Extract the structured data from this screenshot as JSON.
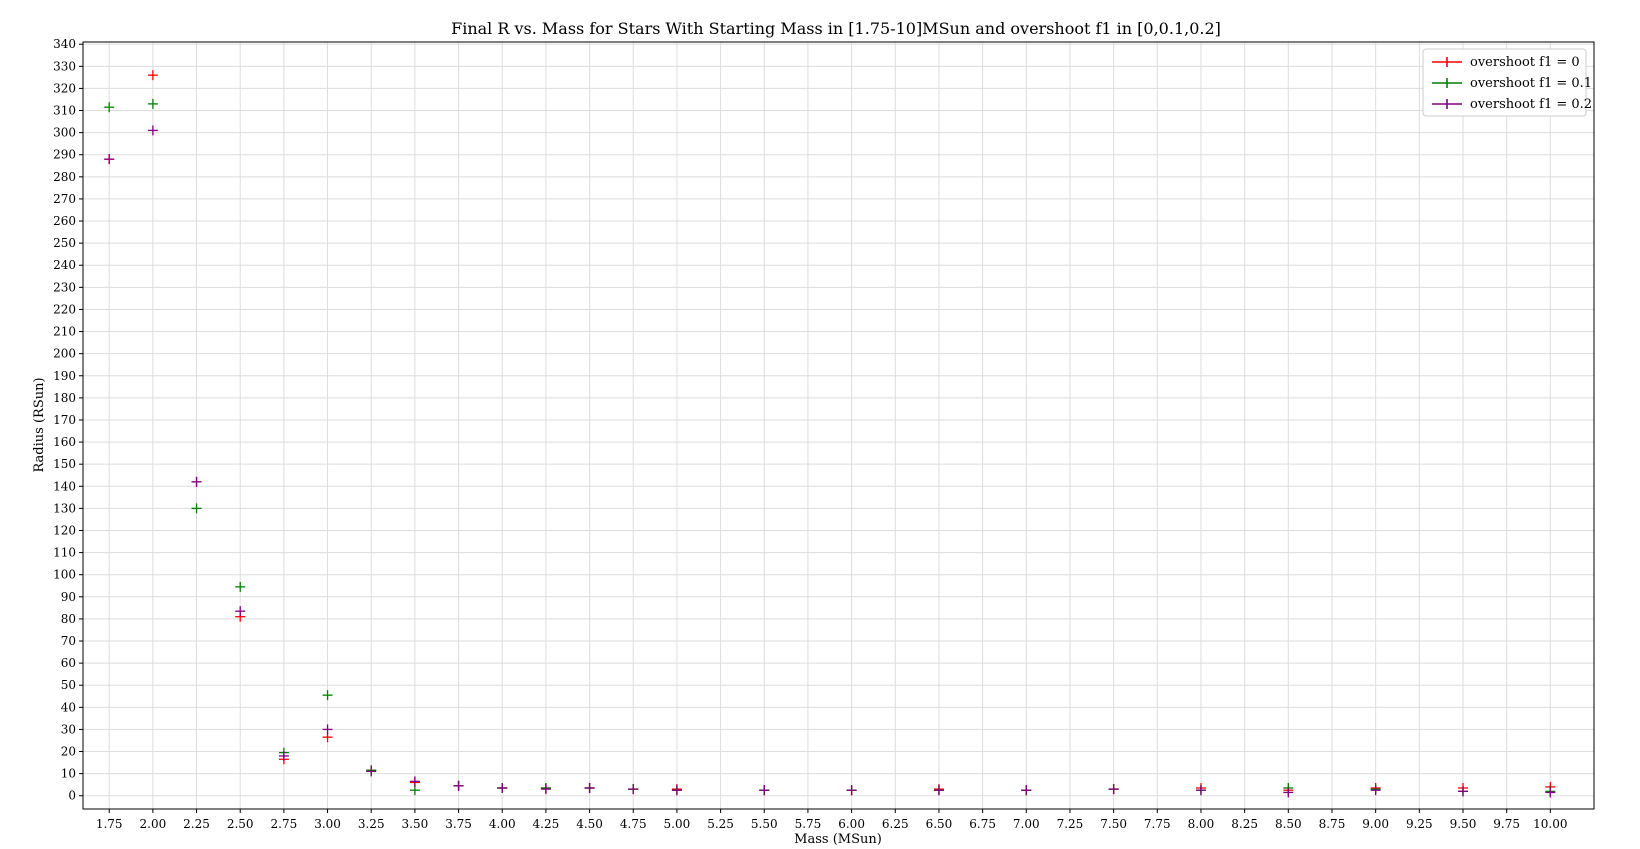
{
  "chart_data": {
    "type": "scatter",
    "title": "Final R vs. Mass for Stars With Starting Mass in [1.75-10]MSun and overshoot f1 in [0,0.1,0.2]",
    "xlabel": "Mass (MSun)",
    "ylabel": "Radius (RSun)",
    "xlim": [
      1.6,
      10.25
    ],
    "ylim": [
      -6,
      341
    ],
    "grid": true,
    "legend_position": "top-right",
    "marker": "+",
    "x_ticks": [
      "1.75",
      "2.00",
      "2.25",
      "2.50",
      "2.75",
      "3.00",
      "3.25",
      "3.50",
      "3.75",
      "4.00",
      "4.25",
      "4.50",
      "4.75",
      "5.00",
      "5.25",
      "5.50",
      "5.75",
      "6.00",
      "6.25",
      "6.50",
      "6.75",
      "7.00",
      "7.25",
      "7.50",
      "7.75",
      "8.00",
      "8.25",
      "8.50",
      "8.75",
      "9.00",
      "9.25",
      "9.50",
      "9.75",
      "10.00"
    ],
    "y_ticks": [
      "0",
      "10",
      "20",
      "30",
      "40",
      "50",
      "60",
      "70",
      "80",
      "90",
      "100",
      "110",
      "120",
      "130",
      "140",
      "150",
      "160",
      "170",
      "180",
      "190",
      "200",
      "210",
      "220",
      "230",
      "240",
      "250",
      "260",
      "270",
      "280",
      "290",
      "300",
      "310",
      "320",
      "330",
      "340"
    ],
    "x": [
      1.75,
      2.0,
      2.25,
      2.5,
      2.75,
      3.0,
      3.25,
      3.5,
      3.75,
      4.0,
      4.25,
      4.5,
      4.75,
      5.0,
      5.5,
      6.0,
      6.5,
      7.0,
      7.5,
      8.0,
      8.5,
      9.0,
      9.5,
      10.0
    ],
    "series": [
      {
        "name": "overshoot f1 = 0",
        "color": "#ff0000",
        "values": [
          288,
          326,
          142,
          81,
          16.5,
          26.5,
          11.5,
          6,
          4.5,
          3.5,
          3.5,
          3.5,
          3,
          3,
          2.5,
          2.5,
          3,
          2.5,
          3,
          3.5,
          2.5,
          3.5,
          3.5,
          4
        ]
      },
      {
        "name": "overshoot f1 = 0.1",
        "color": "#008000",
        "values": [
          311.5,
          313,
          130,
          94.5,
          19.5,
          45.5,
          11.5,
          2.5,
          4.5,
          3.5,
          3.5,
          3.5,
          3,
          2.5,
          2.5,
          2.5,
          2.5,
          2.5,
          3,
          2.5,
          3.5,
          3,
          2,
          2
        ]
      },
      {
        "name": "overshoot f1 = 0.2",
        "color": "#800080",
        "values": [
          288,
          301,
          142,
          83.5,
          18,
          30,
          11,
          6.5,
          4.5,
          3.5,
          3,
          3.5,
          3,
          2.5,
          2.5,
          2.5,
          2.5,
          2.5,
          3,
          2.5,
          1.5,
          2.5,
          2,
          1.5
        ]
      }
    ]
  }
}
